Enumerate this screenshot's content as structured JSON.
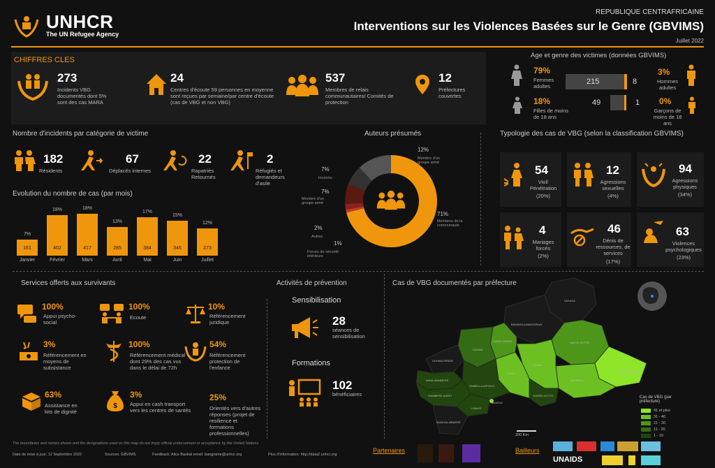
{
  "header": {
    "logo_text": "UNHCR",
    "logo_sub": "The UN Refugee Agency",
    "country": "REPUBLIQUE CENTRAFRICAINE",
    "title": "Interventions sur les Violences Basées sur le Genre (GBVIMS)",
    "date": "Juillet 2022"
  },
  "colors": {
    "accent": "#f0960c",
    "background": "#111111",
    "panel": "#1c1c1c"
  },
  "key_figures": {
    "title": "CHIFFRES CLES",
    "items": [
      {
        "icon": "hands-people-icon",
        "value": "273",
        "text": "Incidents VBG documentés dont 5% sont des cas MARA"
      },
      {
        "icon": "house-icon",
        "value": "24",
        "text": "Centres d'écoute 59 personnes en moyenne sont reçues par semaine/par centre d'écoute (cas de VBG et non VBG)"
      },
      {
        "icon": "group-icon",
        "value": "537",
        "text": "Membres de relais communautaires/ Comités de protection"
      },
      {
        "icon": "map-pin-icon",
        "value": "12",
        "text": "Préfectures couvertes"
      }
    ]
  },
  "age_gender": {
    "title": "Age et genre des victimes (données GBVIMS)",
    "rows": [
      {
        "left_pct": "79%",
        "left_label": "Femmes adultes",
        "left_count": "215",
        "right_count": "8",
        "right_pct": "3%",
        "right_label": "Hommes adultes"
      },
      {
        "left_pct": "18%",
        "left_label": "Filles de moins de 18 ans",
        "left_count": "49",
        "right_count": "1",
        "right_pct": "0%",
        "right_label": "Garçons de moins de 18 ans"
      }
    ]
  },
  "victim_category": {
    "title": "Nombre d'incidents par catégorie de victime",
    "items": [
      {
        "value": "182",
        "label": "Résidents"
      },
      {
        "value": "67",
        "label": "Déplacés internes"
      },
      {
        "value": "22",
        "label": "Rapatriés Retournés"
      },
      {
        "value": "2",
        "label": "Réfugiés et demandeurs d'asile"
      }
    ]
  },
  "monthly_chart": {
    "title": "Evolution du nombre de cas (par mois)",
    "chart_data": {
      "type": "bar",
      "categories": [
        "Janvier",
        "Février",
        "Mars",
        "Avril",
        "Mai",
        "Juin",
        "Juillet"
      ],
      "values": [
        161,
        402,
        417,
        285,
        384,
        346,
        273
      ],
      "percent_labels": [
        "7%",
        "18%",
        "18%",
        "13%",
        "17%",
        "15%",
        "12%"
      ]
    }
  },
  "perpetrators": {
    "title": "Auteurs présumés",
    "chart_data": {
      "type": "pie",
      "slices": [
        {
          "pct_label": "71%",
          "value": 71,
          "label": "Membres de la communauté",
          "color": "#f0960c"
        },
        {
          "pct_label": "1%",
          "value": 1,
          "label": "Forces de sécurité intérieure",
          "color": "#c0392b"
        },
        {
          "pct_label": "2%",
          "value": 2,
          "label": "Autres",
          "color": "#8e2020"
        },
        {
          "pct_label": "7%",
          "value": 7,
          "label": "Membre d'un groupe armé",
          "color": "#5a1a10"
        },
        {
          "pct_label": "7%",
          "value": 7,
          "label": "Inconnu",
          "color": "#333333"
        },
        {
          "pct_label": "12%",
          "value": 12,
          "label": "Membre d'un groupe armé",
          "color": "#555555"
        }
      ]
    }
  },
  "typology": {
    "title": "Typologie des cas de VBG (selon la classification GBVIMS)",
    "items": [
      {
        "icon": "rape-icon",
        "value": "54",
        "label": "Viol/ Pénétration",
        "pct": "(20%)"
      },
      {
        "icon": "sexual-assault-icon",
        "value": "12",
        "label": "Agressions sexuelles",
        "pct": "(4%)"
      },
      {
        "icon": "physical-assault-icon",
        "value": "94",
        "label": "Agressions physiques",
        "pct": "(34%)"
      },
      {
        "icon": "forced-marriage-icon",
        "value": "4",
        "label": "Mariages forcés",
        "pct": "(2%)"
      },
      {
        "icon": "denial-resources-icon",
        "value": "46",
        "label": "Dénis de ressources, de services",
        "pct": "(17%)"
      },
      {
        "icon": "psychological-violence-icon",
        "value": "63",
        "label": "Violences psychologiques",
        "pct": "(23%)"
      }
    ]
  },
  "services": {
    "title": "Services offerts aux survivants",
    "items": [
      {
        "icon": "chat-icon",
        "value": "100%",
        "label": "Appui psycho-social"
      },
      {
        "icon": "listening-icon",
        "value": "100%",
        "label": "Ecoute"
      },
      {
        "icon": "scales-icon",
        "value": "10%",
        "label": "Référencement juridique"
      },
      {
        "icon": "money-icon",
        "value": "3%",
        "label": "Référencement en moyens de subsistance"
      },
      {
        "icon": "medical-icon",
        "value": "100%",
        "label": "Référencement médical dont 29% des cas vus dans le délai de 72h"
      },
      {
        "icon": "child-protection-icon",
        "value": "54%",
        "label": "Référencement protection de l'enfance"
      },
      {
        "icon": "dignity-kit-icon",
        "value": "63%",
        "label": "Assistance en kits de dignité"
      },
      {
        "icon": "cash-bag-icon",
        "value": "3%",
        "label": "Appui en cash transport vers les centres de santés"
      },
      {
        "icon": "none",
        "value": "25%",
        "label": "Orientés vers d'autres réponses (projet de resilience et formations professionnelles)"
      }
    ]
  },
  "prevention": {
    "title": "Activités de prévention",
    "sensitization_title": "Sensibilisation",
    "sensitization_value": "28",
    "sensitization_label": "séances de sensibilisation",
    "training_title": "Formations",
    "training_value": "102",
    "training_label": "bénéficiaires"
  },
  "map": {
    "title": "Cas de VBG documentés par préfecture",
    "prefectures": [
      "VAKAGA",
      "BAMINGUI-BANGORAN",
      "HAUTE-KOTTO",
      "HAUT-MBOMOU",
      "MBOMOU",
      "OUAKA",
      "OUHAM",
      "NANA-GRIBIZI",
      "KEMO",
      "BASSE-KOTTO",
      "OUHAM-PENDE",
      "NANA-MAMBERE",
      "OMBELLA-M'POKO",
      "MAMBERE-KADEI",
      "LOBAYE",
      "SANGHA-MBAERE",
      "BANGUI"
    ],
    "legend_title": "Cas de VBG (par préfecture)",
    "legend": [
      {
        "label": "41 et plus",
        "color": "#8ee52a"
      },
      {
        "label": "31 - 40",
        "color": "#6cc021"
      },
      {
        "label": "21 - 30",
        "color": "#4e961a"
      },
      {
        "label": "11 - 20",
        "color": "#356b14"
      },
      {
        "label": "1 - 10",
        "color": "#22460e"
      }
    ],
    "scale": "200 Km"
  },
  "footer": {
    "disclaimer": "The boundaries and names shown and the designations used on this map do not imply official endorsement or acceptance by the United Nations",
    "update": "Date de mise à jour: 12 Septembre 2022",
    "sources": "Sources: GBVIMS",
    "feedback": "Feedback: Alice Bastiat    email: bangrame@unhcr.org",
    "more_info": "Plus d'information: http://data2.unhcr.org",
    "partners_label": "Partenaires",
    "donors_label": "Bailleurs",
    "donor_text": "UNAIDS"
  }
}
